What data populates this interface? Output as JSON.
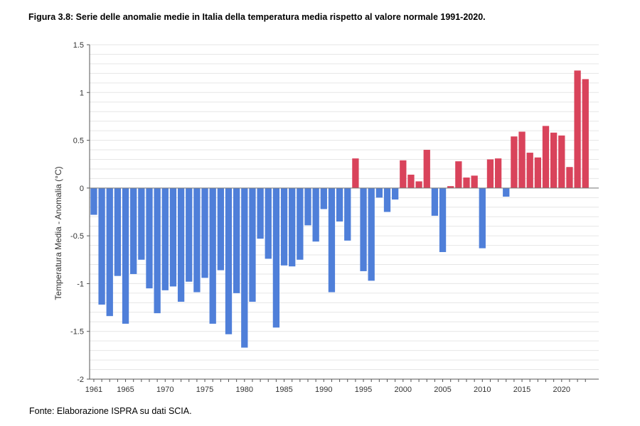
{
  "page": {
    "title": "Figura 3.8: Serie delle anomalie medie in Italia della temperatura media rispetto al valore normale 1991-2020.",
    "source": "Fonte: Elaborazione ISPRA su dati SCIA."
  },
  "chart_data": {
    "type": "bar",
    "title": "Figura 3.8: Serie delle anomalie medie in Italia della temperatura media rispetto al valore normale 1991-2020.",
    "xlabel": "",
    "ylabel": "Temperatura Media - Anomalia (°C)",
    "ylim": [
      -2,
      1.5
    ],
    "yticks": [
      -2,
      -1.5,
      -1,
      -0.5,
      0,
      0.5,
      1,
      1.5
    ],
    "ytick_labels": [
      "-2",
      "-1.5",
      "-1",
      "-0.5",
      "0",
      "0.5",
      "1",
      "1.5"
    ],
    "xtick_labels": [
      "1961",
      "1965",
      "1970",
      "1975",
      "1980",
      "1985",
      "1990",
      "1995",
      "2000",
      "2005",
      "2010",
      "2015",
      "2020"
    ],
    "grid": "horizontal",
    "colors": {
      "positive": "#d9435b",
      "negative": "#4f7fd9",
      "grid": "#e6e6e6",
      "axis": "#555555"
    },
    "categories": [
      "1961",
      "1962",
      "1963",
      "1964",
      "1965",
      "1966",
      "1967",
      "1968",
      "1969",
      "1970",
      "1971",
      "1972",
      "1973",
      "1974",
      "1975",
      "1976",
      "1977",
      "1978",
      "1979",
      "1980",
      "1981",
      "1982",
      "1983",
      "1984",
      "1985",
      "1986",
      "1987",
      "1988",
      "1989",
      "1990",
      "1991",
      "1992",
      "1993",
      "1994",
      "1995",
      "1996",
      "1997",
      "1998",
      "1999",
      "2000",
      "2001",
      "2002",
      "2003",
      "2004",
      "2005",
      "2006",
      "2007",
      "2008",
      "2009",
      "2010",
      "2011",
      "2012",
      "2013",
      "2014",
      "2015",
      "2016",
      "2017",
      "2018",
      "2019",
      "2020",
      "2021",
      "2022",
      "2023"
    ],
    "values": [
      -0.28,
      -1.22,
      -1.34,
      -0.92,
      -1.42,
      -0.9,
      -0.75,
      -1.05,
      -1.31,
      -1.07,
      -1.03,
      -1.19,
      -0.98,
      -1.09,
      -0.94,
      -1.42,
      -0.86,
      -1.53,
      -1.1,
      -1.67,
      -1.19,
      -0.53,
      -0.74,
      -1.46,
      -0.81,
      -0.82,
      -0.75,
      -0.39,
      -0.56,
      -0.22,
      -1.09,
      -0.35,
      -0.55,
      0.31,
      -0.87,
      -0.97,
      -0.1,
      -0.25,
      -0.12,
      0.29,
      0.14,
      0.07,
      0.4,
      -0.29,
      -0.67,
      0.02,
      0.28,
      0.11,
      0.13,
      -0.63,
      0.3,
      0.31,
      -0.09,
      0.54,
      0.59,
      0.37,
      0.32,
      0.65,
      0.58,
      0.55,
      0.22,
      1.23,
      1.14
    ]
  }
}
